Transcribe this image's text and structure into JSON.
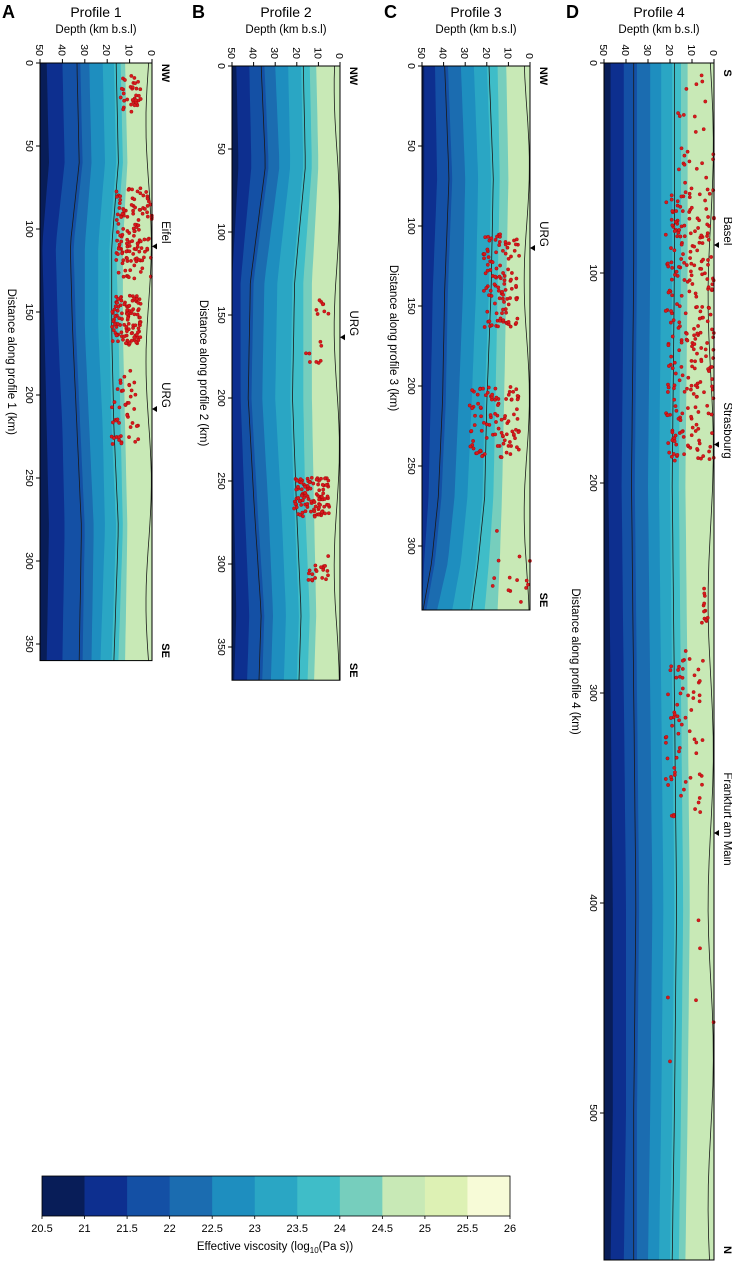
{
  "figure": {
    "colorbar": {
      "label_main": "Effective viscosity (log",
      "label_sub": "10",
      "label_end": "(Pa s))",
      "ticks": [
        "20.5",
        "21",
        "21.5",
        "22",
        "22.5",
        "23",
        "23.5",
        "24",
        "24.5",
        "25",
        "25.5",
        "26"
      ],
      "colors": [
        "#081d58",
        "#0d2f8f",
        "#1450a5",
        "#1b6cb0",
        "#1e8ebf",
        "#2aa6c4",
        "#3fbdc8",
        "#76cebd",
        "#c8e9b6",
        "#ddf1b4",
        "#f7fbd7"
      ]
    },
    "panels": [
      {
        "letter": "A",
        "title": "Profile 1",
        "depth_label": "Depth (km b.s.l)",
        "dist_label": "Distance along profile 1 (km)",
        "dir_start": "NW",
        "dir_end": "SE",
        "places": [
          {
            "name": "Eifel",
            "at": 102
          },
          {
            "name": "URG",
            "at": 200
          }
        ]
      },
      {
        "letter": "B",
        "title": "Profile 2",
        "depth_label": "Depth (km b.s.l)",
        "dist_label": "Distance along profile 2 (km)",
        "dir_start": "NW",
        "dir_end": "SE",
        "places": [
          {
            "name": "URG",
            "at": 155
          }
        ]
      },
      {
        "letter": "C",
        "title": "Profile 3",
        "depth_label": "Depth (km b.s.l)",
        "dist_label": "Distance along profile 3 (km)",
        "dir_start": "NW",
        "dir_end": "SE",
        "places": [
          {
            "name": "URG",
            "at": 105
          }
        ]
      },
      {
        "letter": "D",
        "title": "Profile 4",
        "depth_label": "Depth (km b.s.l)",
        "dist_label": "Distance along profile 4 (km)",
        "dir_start": "S",
        "dir_end": "N",
        "places": [
          {
            "name": "Basel",
            "at": 80
          },
          {
            "name": "Strasbourg",
            "at": 175
          },
          {
            "name": "Frankfurt am Main",
            "at": 360
          }
        ]
      }
    ]
  },
  "chart_data": [
    {
      "type": "heatmap",
      "title": "Profile 1",
      "xlabel": "Depth (km b.s.l)",
      "ylabel": "Distance along profile 1 (km)",
      "xlim": [
        50,
        0
      ],
      "ylim": [
        0,
        360
      ],
      "depth_ticks": [
        50,
        40,
        30,
        20,
        10,
        0
      ],
      "distance_ticks": [
        0,
        50,
        100,
        150,
        200,
        250,
        300,
        350
      ],
      "boundary_depths": {
        "distance": [
          0,
          60,
          110,
          160,
          220,
          280,
          360
        ],
        "values": [
          [
            47,
            46,
            49,
            48,
            47,
            46,
            47
          ],
          [
            40,
            39,
            43,
            42,
            40,
            39,
            40
          ],
          [
            32,
            31,
            35,
            34,
            32,
            30,
            31
          ],
          [
            28,
            27,
            30,
            30,
            28,
            26,
            27
          ],
          [
            22,
            21,
            24,
            24,
            22,
            21,
            23
          ],
          [
            17,
            16,
            19,
            19,
            18,
            16,
            18
          ],
          [
            14,
            13,
            16,
            15,
            14,
            13,
            15
          ],
          [
            12,
            11,
            13,
            13,
            12,
            11,
            12
          ]
        ]
      },
      "seismicity_clusters": [
        {
          "d0": 5,
          "d1": 30,
          "z0": 5,
          "z1": 14,
          "n": 35
        },
        {
          "d0": 75,
          "d1": 130,
          "z0": 0,
          "z1": 16,
          "n": 130
        },
        {
          "d0": 140,
          "d1": 170,
          "z0": 5,
          "z1": 18,
          "n": 110
        },
        {
          "d0": 185,
          "d1": 230,
          "z0": 6,
          "z1": 18,
          "n": 45
        }
      ]
    },
    {
      "type": "heatmap",
      "title": "Profile 2",
      "xlabel": "Depth (km b.s.l)",
      "ylabel": "Distance along profile 2 (km)",
      "xlim": [
        50,
        0
      ],
      "ylim": [
        0,
        370
      ],
      "depth_ticks": [
        50,
        40,
        30,
        20,
        10,
        0
      ],
      "distance_ticks": [
        0,
        50,
        100,
        150,
        200,
        250,
        300,
        350
      ],
      "boundary_depths": {
        "distance": [
          0,
          60,
          130,
          200,
          270,
          330,
          370
        ],
        "values": [
          [
            48,
            47,
            50,
            50,
            49,
            48,
            49
          ],
          [
            42,
            41,
            46,
            46,
            44,
            42,
            43
          ],
          [
            35,
            33,
            40,
            41,
            38,
            35,
            36
          ],
          [
            30,
            28,
            35,
            36,
            33,
            31,
            32
          ],
          [
            24,
            23,
            29,
            30,
            27,
            25,
            26
          ],
          [
            18,
            17,
            22,
            23,
            21,
            19,
            20
          ],
          [
            14,
            13,
            17,
            17,
            16,
            14,
            15
          ],
          [
            11,
            10,
            13,
            13,
            12,
            11,
            12
          ]
        ]
      },
      "seismicity_clusters": [
        {
          "d0": 140,
          "d1": 150,
          "z0": 5,
          "z1": 12,
          "n": 8
        },
        {
          "d0": 165,
          "d1": 180,
          "z0": 8,
          "z1": 16,
          "n": 8
        },
        {
          "d0": 248,
          "d1": 272,
          "z0": 5,
          "z1": 22,
          "n": 110
        },
        {
          "d0": 295,
          "d1": 310,
          "z0": 5,
          "z1": 15,
          "n": 20
        }
      ]
    },
    {
      "type": "heatmap",
      "title": "Profile 3",
      "xlabel": "Depth (km b.s.l)",
      "ylabel": "Distance along profile 3 (km)",
      "xlim": [
        50,
        0
      ],
      "ylim": [
        0,
        340
      ],
      "depth_ticks": [
        50,
        40,
        30,
        20,
        10,
        0
      ],
      "distance_ticks": [
        0,
        50,
        100,
        150,
        200,
        250,
        300
      ],
      "boundary_depths": {
        "distance": [
          0,
          70,
          140,
          210,
          270,
          310,
          340
        ],
        "values": [
          [
            49,
            49,
            50,
            50,
            50,
            50,
            50
          ],
          [
            44,
            43,
            45,
            46,
            47,
            49,
            50
          ],
          [
            38,
            36,
            38,
            39,
            41,
            44,
            48
          ],
          [
            32,
            30,
            31,
            33,
            35,
            38,
            43
          ],
          [
            26,
            24,
            25,
            27,
            29,
            32,
            36
          ],
          [
            20,
            18,
            19,
            21,
            22,
            25,
            28
          ],
          [
            15,
            14,
            15,
            16,
            17,
            19,
            21
          ],
          [
            11,
            10,
            11,
            12,
            13,
            14,
            15
          ]
        ]
      },
      "seismicity_clusters": [
        {
          "d0": 105,
          "d1": 165,
          "z0": 5,
          "z1": 22,
          "n": 110
        },
        {
          "d0": 200,
          "d1": 245,
          "z0": 5,
          "z1": 28,
          "n": 100
        },
        {
          "d0": 285,
          "d1": 335,
          "z0": 0,
          "z1": 25,
          "n": 14
        }
      ]
    },
    {
      "type": "heatmap",
      "title": "Profile 4",
      "xlabel": "Depth (km b.s.l)",
      "ylabel": "Distance along profile 4 (km)",
      "xlim": [
        50,
        0
      ],
      "ylim": [
        0,
        570
      ],
      "depth_ticks": [
        50,
        40,
        30,
        20,
        10,
        0
      ],
      "distance_ticks": [
        0,
        100,
        200,
        300,
        400,
        500
      ],
      "boundary_depths": {
        "distance": [
          0,
          100,
          200,
          300,
          400,
          500,
          570
        ],
        "values": [
          [
            47,
            47,
            48,
            47,
            46,
            46,
            47
          ],
          [
            41,
            41,
            42,
            41,
            40,
            40,
            41
          ],
          [
            35,
            35,
            36,
            35,
            34,
            35,
            35
          ],
          [
            29,
            29,
            30,
            29,
            28,
            29,
            30
          ],
          [
            24,
            24,
            25,
            24,
            23,
            24,
            25
          ],
          [
            19,
            19,
            20,
            19,
            18,
            19,
            20
          ],
          [
            15,
            15,
            16,
            15,
            14,
            15,
            16
          ],
          [
            12,
            12,
            13,
            12,
            11,
            12,
            13
          ]
        ]
      },
      "seismicity_clusters": [
        {
          "d0": 5,
          "d1": 60,
          "z0": 0,
          "z1": 18,
          "n": 25
        },
        {
          "d0": 60,
          "d1": 190,
          "z0": 0,
          "z1": 22,
          "n": 270
        },
        {
          "d0": 250,
          "d1": 270,
          "z0": 2,
          "z1": 6,
          "n": 12
        },
        {
          "d0": 280,
          "d1": 360,
          "z0": 5,
          "z1": 22,
          "n": 70
        },
        {
          "d0": 400,
          "d1": 500,
          "z0": 0,
          "z1": 22,
          "n": 6
        }
      ]
    }
  ]
}
